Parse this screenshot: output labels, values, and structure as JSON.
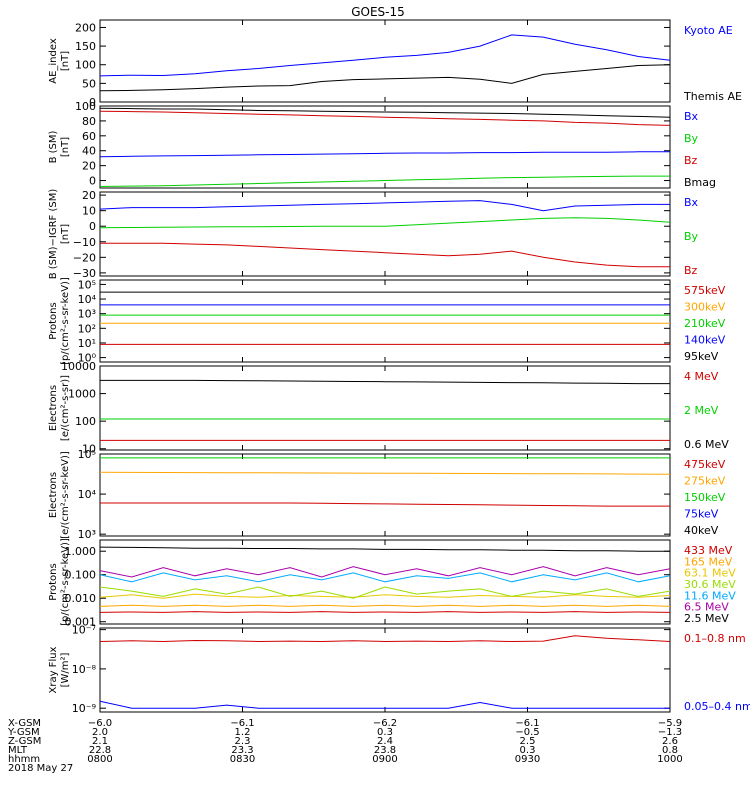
{
  "title": "GOES-15",
  "colors": {
    "black": "#000000",
    "blue": "#0000ff",
    "green": "#00d000",
    "red": "#d00000",
    "orange": "#ffa500",
    "cyan": "#00aaff",
    "lime": "#99dd00",
    "purple": "#7700aa",
    "yellow": "#e8c800",
    "magenta": "#aa00aa"
  },
  "chart_data": [
    {
      "id": "ae",
      "type": "line",
      "ylabel": [
        "AE_index",
        "[nT]"
      ],
      "ylim": [
        0,
        220
      ],
      "yticks": [
        0,
        50,
        100,
        150,
        200
      ],
      "ytick_labels": [
        "0",
        "50",
        "100",
        "150",
        "200"
      ],
      "series": [
        {
          "name": "Kyoto AE",
          "color": "blue",
          "values": [
            70,
            72,
            71,
            76,
            84,
            90,
            98,
            105,
            112,
            120,
            125,
            133,
            150,
            180,
            174,
            155,
            140,
            122,
            112
          ]
        },
        {
          "name": "Themis AE",
          "color": "black",
          "values": [
            30,
            31,
            33,
            36,
            40,
            43,
            44,
            55,
            60,
            62,
            64,
            66,
            61,
            50,
            74,
            82,
            90,
            98,
            100
          ]
        }
      ]
    },
    {
      "id": "bsm",
      "type": "line",
      "ylabel": [
        "B (SM)",
        "[nT]"
      ],
      "ylim": [
        -10,
        100
      ],
      "yticks": [
        0,
        20,
        40,
        60,
        80,
        100
      ],
      "ytick_labels": [
        "0",
        "20",
        "40",
        "60",
        "80",
        "100"
      ],
      "series": [
        {
          "name": "Bx",
          "color": "blue",
          "values": [
            32,
            32.5,
            33,
            33.5,
            34,
            34.5,
            35,
            35.5,
            36,
            36.5,
            37,
            37,
            37.5,
            37.5,
            38,
            38,
            38,
            38.5,
            38.5
          ]
        },
        {
          "name": "By",
          "color": "green",
          "values": [
            -8,
            -7.5,
            -7,
            -6,
            -5,
            -4,
            -3,
            -2,
            -1,
            0,
            1,
            2,
            3,
            4,
            4.5,
            5,
            5.5,
            6,
            6
          ]
        },
        {
          "name": "Bz",
          "color": "red",
          "values": [
            93,
            92.5,
            92,
            91,
            90,
            89,
            88,
            87,
            86,
            85,
            84,
            83,
            82,
            81,
            80,
            78,
            77,
            75,
            74
          ]
        },
        {
          "name": "Bmag",
          "color": "black",
          "values": [
            97,
            96.5,
            96,
            96,
            95,
            94,
            93.5,
            93,
            92.5,
            92,
            91.5,
            91,
            90.5,
            90,
            89,
            88,
            87,
            86,
            85
          ]
        }
      ]
    },
    {
      "id": "bigrf",
      "type": "line",
      "ylabel": [
        "B (SM)−IGRF (SM)",
        "[nT]"
      ],
      "ylim": [
        -32,
        22
      ],
      "yticks": [
        -30,
        -20,
        -10,
        0,
        10,
        20
      ],
      "ytick_labels": [
        "−30",
        "−20",
        "−10",
        "0",
        "10",
        "20"
      ],
      "series": [
        {
          "name": "Bx",
          "color": "blue",
          "values": [
            11,
            12,
            12,
            12,
            12.5,
            13,
            13.5,
            14,
            14.5,
            15,
            15.5,
            16,
            16.5,
            14,
            10,
            13,
            13.5,
            14,
            14
          ]
        },
        {
          "name": "By",
          "color": "green",
          "values": [
            -1,
            -0.8,
            -0.6,
            -0.5,
            -0.4,
            -0.3,
            -0.2,
            0,
            0,
            0,
            1,
            2,
            3,
            4,
            5,
            5.5,
            5,
            4,
            2.5
          ]
        },
        {
          "name": "Bz",
          "color": "red",
          "values": [
            -11,
            -11,
            -11,
            -11.5,
            -12,
            -13,
            -14,
            -15,
            -16,
            -17,
            -18,
            -19,
            -18,
            -16,
            -20,
            -23,
            -25,
            -26,
            -26
          ]
        }
      ]
    },
    {
      "id": "protons_low",
      "type": "line",
      "log": true,
      "ylabel": [
        "Protons",
        "[p/(cm²-s-sr-keV)]"
      ],
      "ylim": [
        0.5,
        200000
      ],
      "yticks": [
        1,
        10,
        100,
        1000,
        10000,
        100000
      ],
      "ytick_labels": [
        "10⁰",
        "10¹",
        "10²",
        "10³",
        "10⁴",
        "10⁵"
      ],
      "series": [
        {
          "name": "575keV",
          "color": "red",
          "values": [
            8,
            8,
            8,
            8,
            8,
            8,
            8,
            8,
            8,
            8,
            8,
            8,
            8,
            8,
            8,
            8,
            8,
            8,
            8
          ]
        },
        {
          "name": "300keV",
          "color": "orange",
          "values": [
            220,
            220,
            220,
            220,
            220,
            220,
            220,
            220,
            220,
            220,
            220,
            220,
            220,
            220,
            220,
            220,
            220,
            220,
            220
          ]
        },
        {
          "name": "210keV",
          "color": "green",
          "values": [
            800,
            800,
            800,
            800,
            800,
            800,
            800,
            800,
            800,
            800,
            800,
            800,
            800,
            800,
            800,
            800,
            800,
            800,
            800
          ]
        },
        {
          "name": "140keV",
          "color": "blue",
          "values": [
            4000,
            4000,
            4000,
            4000,
            4000,
            4000,
            4000,
            4000,
            4000,
            4000,
            4000,
            4000,
            4000,
            4000,
            4000,
            4000,
            4000,
            4000,
            4000
          ]
        },
        {
          "name": "95keV",
          "color": "black",
          "values": [
            30000,
            30000,
            30000,
            30000,
            30000,
            30000,
            30000,
            30000,
            30000,
            30000,
            30000,
            30000,
            30000,
            30000,
            30000,
            30000,
            30000,
            30000,
            30000
          ]
        }
      ]
    },
    {
      "id": "electrons_high",
      "type": "line",
      "log": true,
      "ylabel": [
        "Electrons",
        "[e/(cm²-s-sr)]"
      ],
      "ylim": [
        9,
        10000
      ],
      "yticks": [
        10,
        100,
        1000,
        10000
      ],
      "ytick_labels": [
        "10",
        "100",
        "1000",
        "10000"
      ],
      "series": [
        {
          "name": "4 MeV",
          "color": "red",
          "values": [
            20,
            20,
            20,
            20,
            20,
            20,
            20,
            20,
            20,
            20,
            20,
            20,
            20,
            20,
            20,
            20,
            20,
            20,
            20
          ]
        },
        {
          "name": "2 MeV",
          "color": "green",
          "values": [
            120,
            120,
            120,
            120,
            120,
            120,
            120,
            120,
            120,
            120,
            120,
            120,
            120,
            120,
            120,
            120,
            120,
            120,
            120
          ]
        },
        {
          "name": "0.6 MeV",
          "color": "black",
          "values": [
            3000,
            3000,
            3000,
            3000,
            2950,
            2900,
            2850,
            2800,
            2750,
            2700,
            2650,
            2600,
            2550,
            2500,
            2450,
            2400,
            2350,
            2300,
            2300
          ]
        }
      ]
    },
    {
      "id": "electrons_low",
      "type": "line",
      "log": true,
      "ylabel": [
        "Electrons",
        "[e/(cm²-s-sr-keV)]"
      ],
      "ylim": [
        900,
        100000
      ],
      "yticks": [
        1000,
        10000,
        100000
      ],
      "ytick_labels": [
        "10³",
        "10⁴",
        "10⁵"
      ],
      "series": [
        {
          "name": "475keV",
          "color": "red",
          "values": [
            6000,
            6000,
            6000,
            6000,
            6000,
            6000,
            6000,
            5900,
            5800,
            5700,
            5600,
            5500,
            5400,
            5300,
            5200,
            5100,
            5000,
            5000,
            5000
          ]
        },
        {
          "name": "275keV",
          "color": "orange",
          "values": [
            35000,
            34800,
            34600,
            34400,
            34200,
            34000,
            33800,
            33600,
            33400,
            33200,
            33000,
            32800,
            32600,
            32400,
            32200,
            32000,
            31800,
            31600,
            31400
          ]
        },
        {
          "name": "150keV",
          "color": "green",
          "values": [
            80000,
            80000,
            80000,
            80000,
            80000,
            80000,
            80000,
            80000,
            80000,
            80000,
            80000,
            80000,
            80000,
            80000,
            80000,
            80000,
            80000,
            80000,
            80000
          ]
        },
        {
          "name": "75keV",
          "color": "blue",
          "values": [
            110000,
            110000,
            110000,
            110000,
            110000,
            110000,
            110000,
            110000,
            110000,
            110000,
            110000,
            110000,
            110000,
            110000,
            110000,
            110000,
            110000,
            110000,
            110000
          ]
        },
        {
          "name": "40keV",
          "color": "black",
          "values": [
            110000,
            110000,
            110000,
            110000,
            110000,
            110000,
            110000,
            110000,
            110000,
            110000,
            110000,
            110000,
            110000,
            110000,
            110000,
            110000,
            110000,
            110000,
            110000
          ]
        }
      ]
    },
    {
      "id": "protons_high",
      "type": "line",
      "log": true,
      "ylabel": [
        "Protons",
        "[p/(cm²-s-sr-keV)]"
      ],
      "ylim": [
        0.0008,
        3
      ],
      "yticks": [
        0.001,
        0.01,
        0.1,
        1
      ],
      "ytick_labels": [
        "0.001",
        "0.010",
        "0.100",
        "1.000"
      ],
      "series": [
        {
          "name": "433 MeV",
          "color": "red",
          "values": [
            0.0025,
            0.0026,
            0.0025,
            0.0027,
            0.0025,
            0.0026,
            0.0025,
            0.0027,
            0.0025,
            0.0026,
            0.0025,
            0.0027,
            0.0025,
            0.0026,
            0.0025,
            0.0027,
            0.0025,
            0.0026,
            0.0025
          ]
        },
        {
          "name": "165 MeV",
          "color": "orange",
          "values": [
            0.0045,
            0.005,
            0.0045,
            0.005,
            0.0045,
            0.005,
            0.0045,
            0.005,
            0.0045,
            0.005,
            0.0045,
            0.005,
            0.0045,
            0.005,
            0.0045,
            0.005,
            0.0045,
            0.005,
            0.0045
          ]
        },
        {
          "name": "63.1 MeV",
          "color": "yellow",
          "values": [
            0.011,
            0.014,
            0.01,
            0.015,
            0.012,
            0.011,
            0.013,
            0.012,
            0.011,
            0.014,
            0.012,
            0.011,
            0.013,
            0.012,
            0.011,
            0.014,
            0.012,
            0.011,
            0.013
          ]
        },
        {
          "name": "30.6 MeV",
          "color": "lime",
          "values": [
            0.03,
            0.02,
            0.012,
            0.025,
            0.015,
            0.03,
            0.012,
            0.02,
            0.01,
            0.03,
            0.015,
            0.02,
            0.025,
            0.012,
            0.02,
            0.015,
            0.025,
            0.012,
            0.02
          ]
        },
        {
          "name": "11.6 MeV",
          "color": "cyan",
          "values": [
            0.1,
            0.05,
            0.12,
            0.06,
            0.09,
            0.05,
            0.1,
            0.06,
            0.12,
            0.05,
            0.09,
            0.07,
            0.12,
            0.05,
            0.1,
            0.06,
            0.12,
            0.05,
            0.09
          ]
        },
        {
          "name": "6.5 MeV",
          "color": "magenta",
          "values": [
            0.15,
            0.08,
            0.2,
            0.09,
            0.18,
            0.1,
            0.2,
            0.08,
            0.22,
            0.1,
            0.18,
            0.09,
            0.2,
            0.1,
            0.22,
            0.09,
            0.2,
            0.1,
            0.18
          ]
        },
        {
          "name": "2.5 MeV",
          "color": "black",
          "values": [
            1.5,
            1.45,
            1.4,
            1.35,
            1.35,
            1.3,
            1.3,
            1.25,
            1.25,
            1.2,
            1.2,
            1.15,
            1.15,
            1.1,
            1.1,
            1.05,
            1.05,
            1.0,
            1.0
          ]
        }
      ]
    },
    {
      "id": "xray",
      "type": "line",
      "log": true,
      "ylabel": [
        "Xray Flux",
        "[W/m²]"
      ],
      "ylim": [
        8e-10,
        1.1e-07
      ],
      "yticks": [
        1e-09,
        1e-08,
        1e-07
      ],
      "ytick_labels": [
        "10⁻⁹",
        "10⁻⁸",
        "10⁻⁷"
      ],
      "series": [
        {
          "name": "0.1–0.8 nm",
          "color": "red",
          "values": [
            5e-08,
            5.2e-08,
            5e-08,
            5.3e-08,
            5.2e-08,
            5e-08,
            5.1e-08,
            5e-08,
            5.2e-08,
            5e-08,
            5.1e-08,
            5e-08,
            5.2e-08,
            5e-08,
            5.1e-08,
            7e-08,
            6e-08,
            5.5e-08,
            5e-08
          ]
        },
        {
          "name": "0.05–0.4 nm",
          "color": "blue",
          "values": [
            1.5e-09,
            1e-09,
            1e-09,
            1e-09,
            1.2e-09,
            1e-09,
            1e-09,
            1e-09,
            1e-09,
            1e-09,
            1e-09,
            1e-09,
            1.4e-09,
            1e-09,
            1e-09,
            1e-09,
            1e-09,
            1e-09,
            1e-09
          ]
        }
      ]
    }
  ],
  "xaxis": {
    "row_labels": [
      "X-GSM",
      "Y-GSM",
      "Z-GSM",
      "MLT",
      "hhmm",
      "2018 May 27"
    ],
    "ticks": [
      {
        "x_gsm": "−6.0",
        "y_gsm": "2.0",
        "z_gsm": "2.1",
        "mlt": "22.8",
        "hhmm": "0800"
      },
      {
        "x_gsm": "−6.1",
        "y_gsm": "1.2",
        "z_gsm": "2.3",
        "mlt": "23.3",
        "hhmm": "0830"
      },
      {
        "x_gsm": "−6.2",
        "y_gsm": "0.3",
        "z_gsm": "2.4",
        "mlt": "23.8",
        "hhmm": "0900"
      },
      {
        "x_gsm": "−6.1",
        "y_gsm": "−0.5",
        "z_gsm": "2.5",
        "mlt": "0.3",
        "hhmm": "0930"
      },
      {
        "x_gsm": "−5.9",
        "y_gsm": "−1.3",
        "z_gsm": "2.6",
        "mlt": "0.8",
        "hhmm": "1000"
      }
    ]
  }
}
